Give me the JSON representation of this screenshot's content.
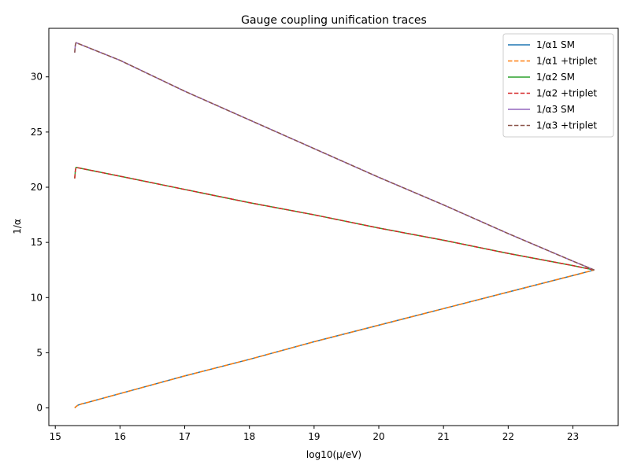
{
  "chart_data": {
    "type": "line",
    "title": "Gauge coupling unification traces",
    "xlabel": "log10(μ/eV)",
    "ylabel": "1/α",
    "xlim": [
      14.9,
      23.7
    ],
    "ylim": [
      -1.6,
      34.4
    ],
    "xticks": [
      15,
      16,
      17,
      18,
      19,
      20,
      21,
      22,
      23
    ],
    "yticks": [
      0,
      5,
      10,
      15,
      20,
      25,
      30
    ],
    "grid": false,
    "legend_position": "top-right",
    "series": [
      {
        "name": "1/α1 SM",
        "color": "#1f77b4",
        "dash": "solid",
        "x": [
          15.3,
          15.32,
          15.35,
          15.4,
          15.5,
          16.0,
          17.0,
          18.0,
          19.0,
          20.0,
          21.0,
          22.0,
          23.0,
          23.33
        ],
        "y": [
          0.0,
          0.12,
          0.25,
          0.35,
          0.5,
          1.3,
          2.9,
          4.4,
          6.0,
          7.5,
          9.0,
          10.5,
          12.0,
          12.5
        ]
      },
      {
        "name": "1/α1 +triplet",
        "color": "#ff7f0e",
        "dash": "dashed",
        "x": [
          15.3,
          15.32,
          15.35,
          15.4,
          15.5,
          16.0,
          17.0,
          18.0,
          19.0,
          20.0,
          21.0,
          22.0,
          23.0,
          23.33
        ],
        "y": [
          0.0,
          0.12,
          0.25,
          0.35,
          0.5,
          1.3,
          2.9,
          4.4,
          6.0,
          7.5,
          9.0,
          10.5,
          12.0,
          12.5
        ]
      },
      {
        "name": "1/α2 SM",
        "color": "#2ca02c",
        "dash": "solid",
        "x": [
          15.3,
          15.31,
          15.32,
          16.0,
          17.0,
          18.0,
          19.0,
          20.0,
          21.0,
          22.0,
          23.0,
          23.33
        ],
        "y": [
          20.8,
          21.5,
          21.8,
          21.0,
          19.8,
          18.6,
          17.5,
          16.3,
          15.2,
          14.0,
          12.9,
          12.5
        ]
      },
      {
        "name": "1/α2 +triplet",
        "color": "#d62728",
        "dash": "dashed",
        "x": [
          15.3,
          15.31,
          15.32,
          16.0,
          17.0,
          18.0,
          19.0,
          20.0,
          21.0,
          22.0,
          23.0,
          23.33
        ],
        "y": [
          20.8,
          21.5,
          21.8,
          21.0,
          19.8,
          18.6,
          17.5,
          16.3,
          15.2,
          14.0,
          12.9,
          12.5
        ]
      },
      {
        "name": "1/α3 SM",
        "color": "#9467bd",
        "dash": "solid",
        "x": [
          15.3,
          15.31,
          15.32,
          16.0,
          17.0,
          18.0,
          19.0,
          20.0,
          21.0,
          22.0,
          23.0,
          23.33
        ],
        "y": [
          32.2,
          32.9,
          33.1,
          31.5,
          28.7,
          26.1,
          23.5,
          20.9,
          18.4,
          15.8,
          13.3,
          12.5
        ]
      },
      {
        "name": "1/α3 +triplet",
        "color": "#8c564b",
        "dash": "dashed",
        "x": [
          15.3,
          15.31,
          15.32,
          16.0,
          17.0,
          18.0,
          19.0,
          20.0,
          21.0,
          22.0,
          23.0,
          23.33
        ],
        "y": [
          32.2,
          32.9,
          33.1,
          31.5,
          28.7,
          26.1,
          23.5,
          20.9,
          18.4,
          15.8,
          13.3,
          12.5
        ]
      }
    ]
  }
}
